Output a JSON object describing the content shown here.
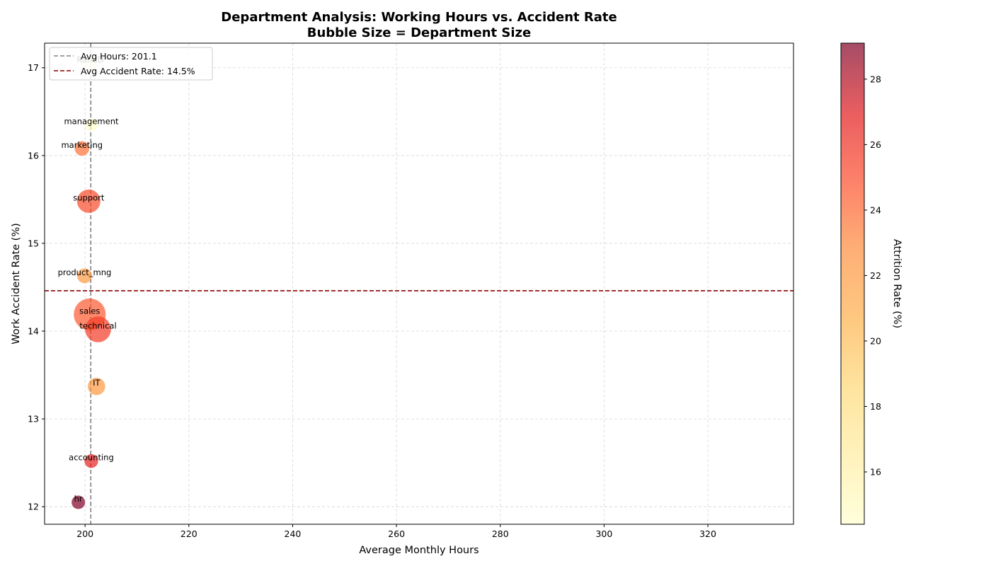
{
  "chart_data": {
    "type": "scatter",
    "title_line1": "Department Analysis: Working Hours vs. Accident Rate",
    "title_line2": "Bubble Size = Department Size",
    "xlabel": "Average Monthly Hours",
    "ylabel": "Work Accident Rate (%)",
    "colorbar_label": "Attrition Rate (%)",
    "xlim": [
      192.2,
      336.5
    ],
    "ylim": [
      11.8,
      17.28
    ],
    "x_ticks": [
      200,
      220,
      240,
      260,
      280,
      300,
      320
    ],
    "y_ticks": [
      12,
      13,
      14,
      15,
      16,
      17
    ],
    "colorbar_range": [
      14.4,
      29.1
    ],
    "colorbar_ticks": [
      16,
      18,
      20,
      22,
      24,
      26,
      28
    ],
    "grid": true,
    "legend_position": "top-left",
    "legend": [
      {
        "label": "Avg Hours: 201.1",
        "style": "dashed",
        "color": "#808080"
      },
      {
        "label": "Avg Accident Rate: 14.5%",
        "style": "dashed",
        "color": "#8b0000"
      }
    ],
    "reference_lines": {
      "avg_hours": 201.1,
      "avg_accident_rate": 14.46
    },
    "points": [
      {
        "label": "RandD",
        "x": 201.0,
        "y": 17.05,
        "size": 787,
        "attrition": 15.4
      },
      {
        "label": "management",
        "x": 201.2,
        "y": 16.35,
        "size": 630,
        "attrition": 14.4
      },
      {
        "label": "marketing",
        "x": 199.4,
        "y": 16.08,
        "size": 858,
        "attrition": 23.7
      },
      {
        "label": "support",
        "x": 200.7,
        "y": 15.48,
        "size": 2229,
        "attrition": 25.0
      },
      {
        "label": "product_mng",
        "x": 199.9,
        "y": 14.63,
        "size": 902,
        "attrition": 22.0
      },
      {
        "label": "sales",
        "x": 200.9,
        "y": 14.19,
        "size": 4140,
        "attrition": 24.5
      },
      {
        "label": "technical",
        "x": 202.5,
        "y": 14.02,
        "size": 2720,
        "attrition": 25.6
      },
      {
        "label": "IT",
        "x": 202.2,
        "y": 13.37,
        "size": 1227,
        "attrition": 22.2
      },
      {
        "label": "accounting",
        "x": 201.2,
        "y": 12.52,
        "size": 767,
        "attrition": 26.6
      },
      {
        "label": "hr",
        "x": 198.7,
        "y": 12.05,
        "size": 739,
        "attrition": 29.1
      }
    ]
  }
}
